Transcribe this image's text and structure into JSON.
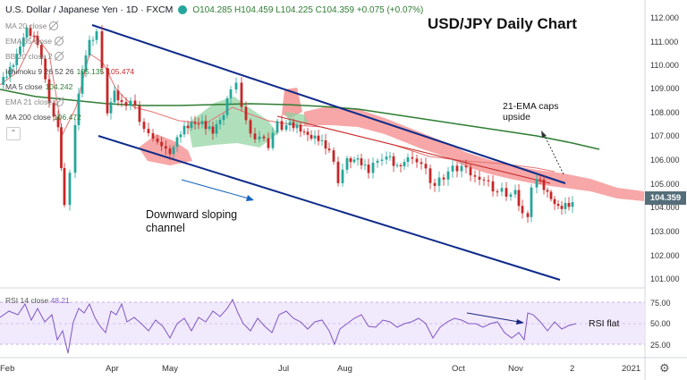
{
  "header": {
    "symbol": "U.S. Dollar / Japanese Yen · 1D · FXCM",
    "ohlc": "O104.285 H104.459 L104.225 C104.359 +0.075 (+0.07%)",
    "status_color": "#26a69a"
  },
  "indicators": [
    {
      "label": "MA 20 close",
      "value": "",
      "hidden": true
    },
    {
      "label": "EMA 55 close",
      "value": "",
      "hidden": true
    },
    {
      "label": "BB 20 close 2",
      "value": "",
      "hidden": true
    },
    {
      "label": "Ichimoku 9 26 52 26",
      "value": "105.135",
      "value2": "105.474",
      "hidden": false
    },
    {
      "label": "MA 5 close",
      "value": "104.242",
      "hidden": false
    },
    {
      "label": "EMA 21 close",
      "value": "",
      "hidden": true
    },
    {
      "label": "MA 200 close",
      "value": "106.472",
      "hidden": false
    }
  ],
  "collapse_icon": "chevron-up-icon",
  "annotations": {
    "title": "USD/JPY Daily Chart",
    "channel_note": "Downward sloping\nchannel",
    "ema_note": "21-EMA caps\nupside",
    "rsi_note": "RSI flat"
  },
  "price_axis": {
    "labels": [
      "112.000",
      "111.000",
      "110.000",
      "109.000",
      "108.000",
      "107.000",
      "106.000",
      "105.000",
      "104.000",
      "103.000",
      "102.000",
      "101.000"
    ],
    "current_price": "104.359",
    "current_price_color": "#546e7a"
  },
  "rsi": {
    "label": "RSI 14 close",
    "value": "48.21",
    "axis_labels": [
      "75.00",
      "50.00",
      "25.00"
    ],
    "color": "#7e57c2"
  },
  "time_axis": {
    "labels": [
      "Feb",
      "Apr",
      "May",
      "Jul",
      "Aug",
      "Oct",
      "Nov",
      "2",
      "2021"
    ]
  },
  "settings_icon": "gear-icon",
  "colors": {
    "up_candle": "#26a69a",
    "down_candle": "#c62828",
    "channel": "#0d2a8a",
    "ma200": "#2e7d32",
    "cloud_bear": "#f48a8a",
    "cloud_bull": "#8fd19e"
  }
}
